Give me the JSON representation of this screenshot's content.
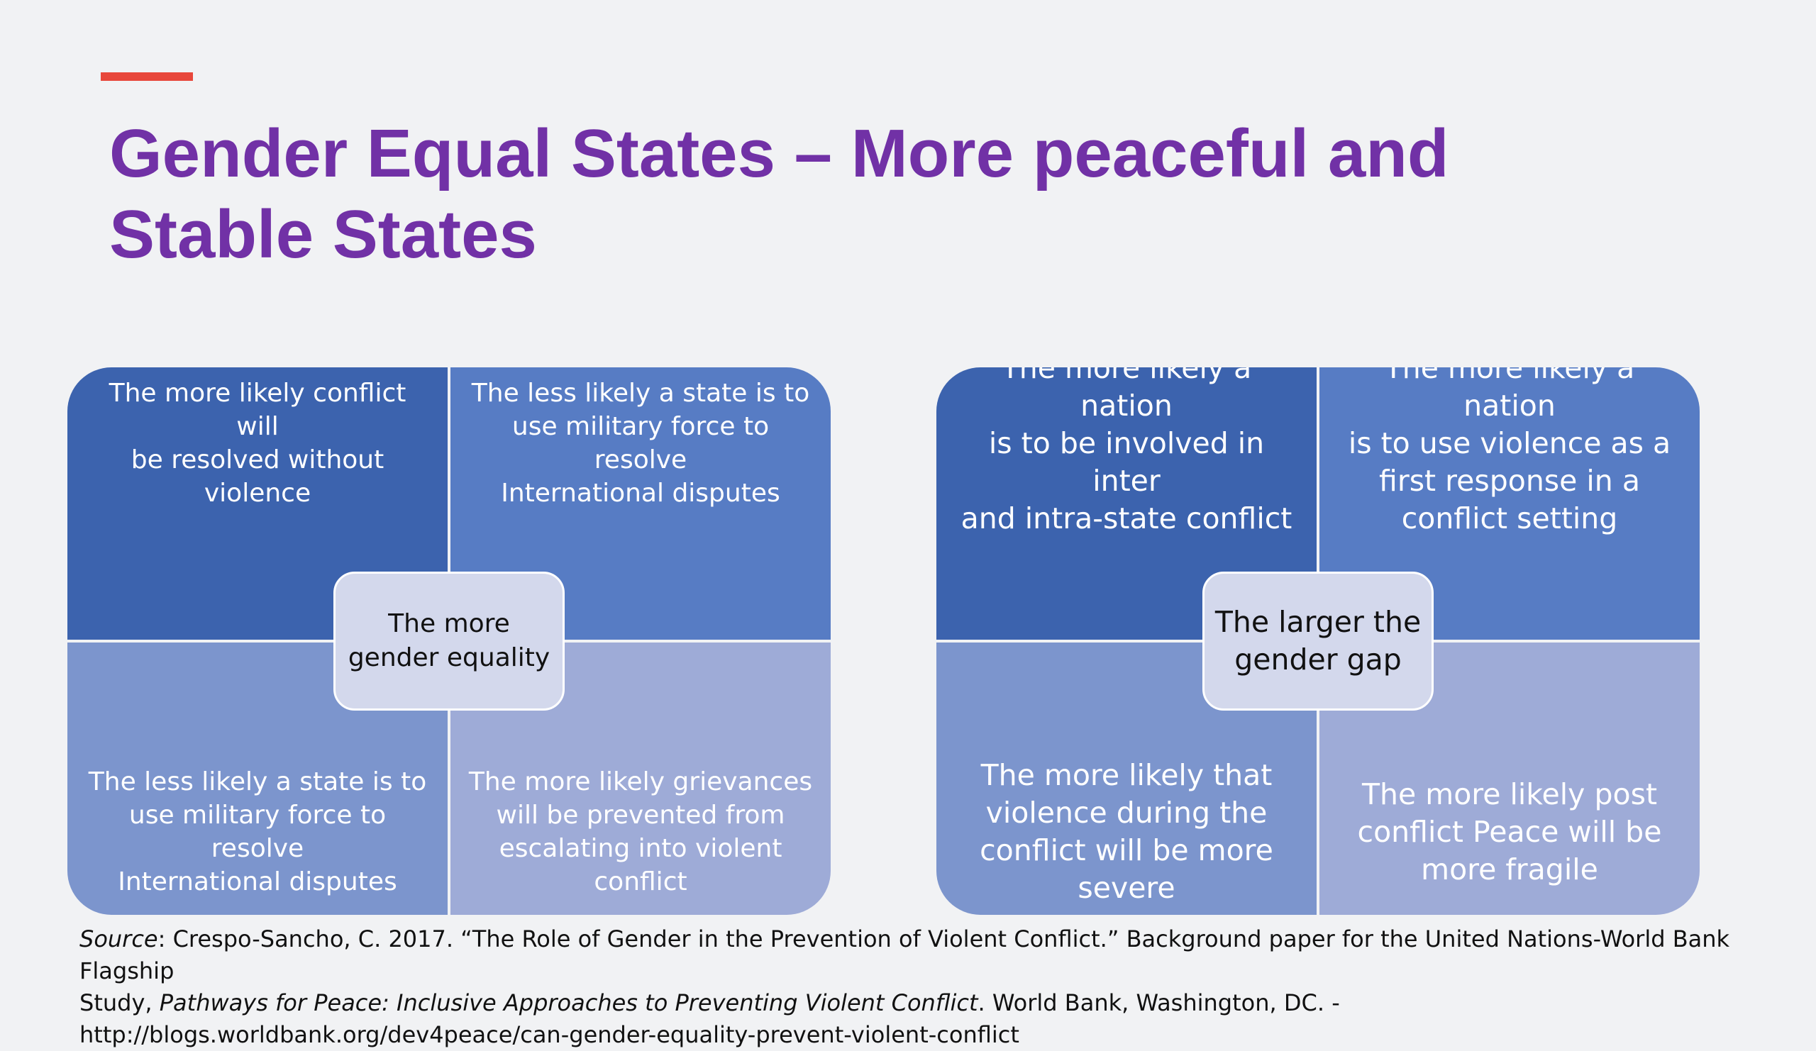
{
  "slide": {
    "title_lines": [
      "Gender Equal States – More peaceful and",
      "Stable States"
    ],
    "colors": {
      "accent": "#e8473b",
      "title": "#7131a6",
      "quadrant_top_left": "#3c63ae",
      "quadrant_top_right": "#577cc4",
      "quadrant_bottom_left": "#7c95cd",
      "quadrant_bottom_right": "#9eabd7",
      "center_box": "#d3d8ec"
    }
  },
  "diagram_left": {
    "center_lines": [
      "The more",
      "gender equality"
    ],
    "top_left_lines": [
      "The more likely conflict will",
      "be resolved without",
      "violence"
    ],
    "top_right_lines": [
      "The less likely a state is to",
      "use military force to resolve",
      "International disputes"
    ],
    "bottom_left_lines": [
      "The less likely a state is to",
      "use military force to resolve",
      "International disputes"
    ],
    "bottom_right_lines": [
      "The more likely grievances",
      "will be prevented from",
      "escalating into violent",
      "conflict"
    ]
  },
  "diagram_right": {
    "center_lines": [
      "The larger the",
      "gender gap"
    ],
    "top_left_lines": [
      "The more likely a nation",
      "is to be involved in inter",
      "and intra-state conflict"
    ],
    "top_right_lines": [
      "The more likely a nation",
      "is to use violence as a",
      "first response in a",
      "conflict setting"
    ],
    "bottom_left_lines": [
      "The more likely that",
      "violence during the",
      "conflict will be more",
      "severe"
    ],
    "bottom_right_lines": [
      "The more likely post",
      "conflict Peace will be",
      "more fragile"
    ]
  },
  "source": {
    "label": "Source",
    "line1_rest": ": Crespo-Sancho, C. 2017. “The Role of Gender in the Prevention of Violent Conflict.” Background paper for the United Nations-World Bank Flagship",
    "line2_prefix": "Study, ",
    "line2_italic": "Pathways for Peace: Inclusive Approaches to Preventing Violent Conflict",
    "line2_suffix": ". World Bank, Washington, DC. -",
    "line3_url": "http://blogs.worldbank.org/dev4peace/can-gender-equality-prevent-violent-conflict"
  }
}
